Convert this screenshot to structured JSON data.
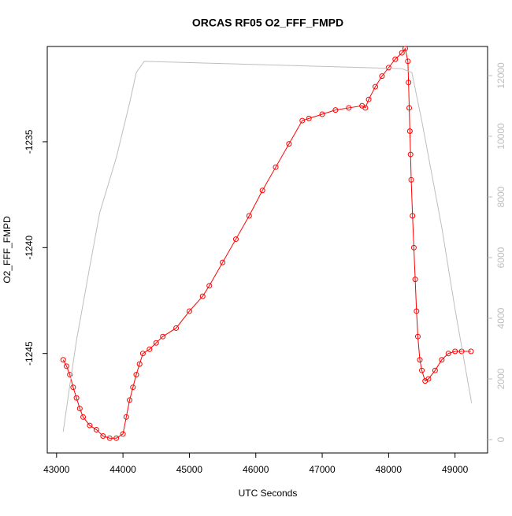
{
  "chart_data": {
    "type": "line",
    "title": "ORCAS RF05 O2_FFF_FMPD",
    "xlabel": "UTC Seconds",
    "ylabel": "O2_FFF_FMPD",
    "xlim": [
      42860,
      49490
    ],
    "ylim": [
      -1249.7,
      -1230.5
    ],
    "y2lim": [
      -440,
      12960
    ],
    "xticks": [
      43000,
      44000,
      45000,
      46000,
      47000,
      48000,
      49000
    ],
    "yticks": [
      -1235,
      -1240,
      -1245
    ],
    "y2ticks": [
      0,
      2000,
      4000,
      6000,
      8000,
      10000,
      12000
    ],
    "series": [
      {
        "color": "#ff0000",
        "marker": "circle",
        "x": [
          43100,
          43150,
          43200,
          43250,
          43300,
          43350,
          43400,
          43500,
          43600,
          43700,
          43800,
          43900,
          44000,
          44050,
          44100,
          44150,
          44200,
          44250,
          44300,
          44400,
          44500,
          44600,
          44800,
          45000,
          45200,
          45300,
          45500,
          45700,
          45900,
          46100,
          46300,
          46500,
          46700,
          46800,
          47000,
          47200,
          47400,
          47600,
          47650,
          47700,
          47800,
          47900,
          48000,
          48100,
          48200,
          48250,
          48290,
          48300,
          48310,
          48320,
          48330,
          48340,
          48360,
          48380,
          48400,
          48420,
          48440,
          48470,
          48500,
          48550,
          48600,
          48700,
          48800,
          48900,
          49000,
          49100,
          49240
        ],
        "values": [
          -1245.3,
          -1245.6,
          -1246.0,
          -1246.6,
          -1247.1,
          -1247.6,
          -1248.0,
          -1248.4,
          -1248.6,
          -1248.9,
          -1249.0,
          -1249.0,
          -1248.8,
          -1248.0,
          -1247.2,
          -1246.6,
          -1246.0,
          -1245.5,
          -1245.0,
          -1244.8,
          -1244.5,
          -1244.2,
          -1243.8,
          -1243.0,
          -1242.3,
          -1241.8,
          -1240.7,
          -1239.6,
          -1238.5,
          -1237.3,
          -1236.2,
          -1235.1,
          -1234.0,
          -1233.9,
          -1233.7,
          -1233.5,
          -1233.4,
          -1233.3,
          -1233.4,
          -1233.0,
          -1232.4,
          -1231.9,
          -1231.5,
          -1231.1,
          -1230.8,
          -1230.6,
          -1231.2,
          -1232.2,
          -1233.4,
          -1234.5,
          -1235.6,
          -1236.8,
          -1238.5,
          -1240.0,
          -1241.5,
          -1243.0,
          -1244.2,
          -1245.3,
          -1245.8,
          -1246.3,
          -1246.2,
          -1245.8,
          -1245.3,
          -1245.0,
          -1244.9,
          -1244.9,
          -1244.9
        ]
      },
      {
        "color": "#bebebe",
        "axis": "y2",
        "x": [
          43100,
          43200,
          43300,
          43500,
          43650,
          43900,
          44100,
          44200,
          44320,
          48200,
          48350,
          48500,
          48800,
          49000,
          49250
        ],
        "values": [
          260,
          1800,
          3270,
          5700,
          7480,
          9300,
          11100,
          12100,
          12470,
          12230,
          12100,
          10500,
          7000,
          4300,
          1200
        ]
      }
    ]
  }
}
